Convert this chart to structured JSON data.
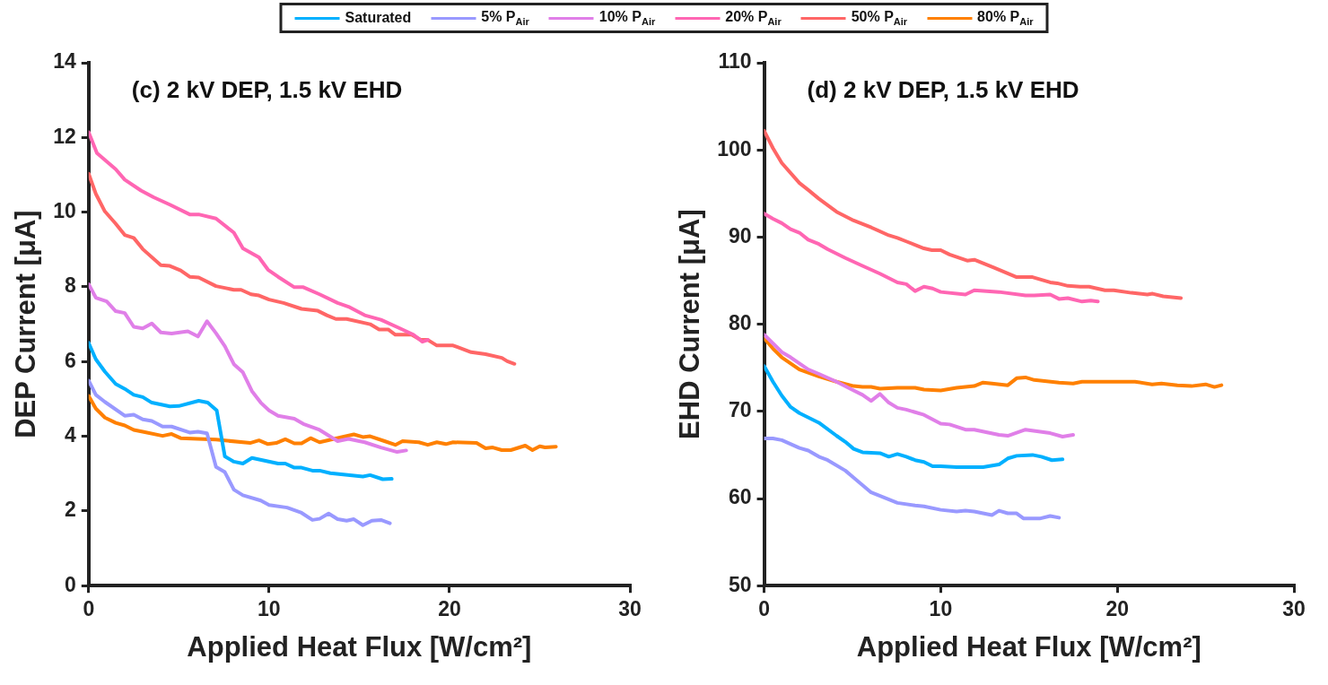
{
  "chart_data": [
    {
      "type": "line",
      "title": "(c) 2 kV DEP, 1.5 kV EHD",
      "xlabel": "Applied Heat Flux [W/cm²]",
      "ylabel": "DEP Current [μA]",
      "xlim": [
        0,
        30
      ],
      "xticks": [
        0,
        10,
        20,
        30
      ],
      "ylim": [
        0,
        14
      ],
      "yticks": [
        0,
        2,
        4,
        6,
        8,
        10,
        12,
        14
      ],
      "legend": "top",
      "marker": "none",
      "line_style": "solid",
      "series": [
        {
          "name": "Saturated",
          "color": "#00b0ff",
          "x": [
            0,
            0.4,
            0.9,
            1.5,
            2.0,
            2.5,
            3.0,
            3.5,
            4.5,
            5.0,
            6.1,
            6.6,
            7.1,
            7.55,
            8.05,
            8.55,
            9.05,
            10.5,
            10.9,
            11.4,
            11.8,
            12.4,
            12.8,
            13.4,
            15.2,
            15.6,
            16.3,
            16.8
          ],
          "values": [
            6.5,
            6.06,
            5.73,
            5.4,
            5.27,
            5.11,
            5.05,
            4.9,
            4.8,
            4.81,
            4.95,
            4.9,
            4.69,
            3.46,
            3.32,
            3.27,
            3.42,
            3.27,
            3.27,
            3.16,
            3.16,
            3.08,
            3.08,
            3.01,
            2.92,
            2.96,
            2.85,
            2.86
          ]
        },
        {
          "name": "5% P$_{Air}$",
          "color": "#9999ff",
          "x": [
            0,
            0.4,
            0.9,
            2.0,
            2.5,
            3.0,
            3.5,
            4.1,
            4.6,
            5.6,
            6.06,
            6.56,
            7.06,
            7.55,
            8.05,
            8.55,
            9.54,
            10.0,
            11.0,
            11.8,
            12.4,
            12.8,
            13.3,
            13.8,
            14.3,
            14.7,
            15.2,
            15.7,
            16.2,
            16.7
          ],
          "values": [
            5.49,
            5.11,
            4.92,
            4.55,
            4.58,
            4.45,
            4.41,
            4.26,
            4.26,
            4.1,
            4.12,
            4.08,
            3.18,
            3.04,
            2.57,
            2.42,
            2.28,
            2.16,
            2.09,
            1.95,
            1.76,
            1.79,
            1.93,
            1.78,
            1.74,
            1.78,
            1.62,
            1.74,
            1.76,
            1.67
          ]
        },
        {
          "name": "10% P$_{Air}$",
          "color": "#e07fe8",
          "x": [
            0,
            0.4,
            1.0,
            1.5,
            2.0,
            2.5,
            3.0,
            3.5,
            4.0,
            4.6,
            5.5,
            6.06,
            6.56,
            7.06,
            7.55,
            8.05,
            8.55,
            9.05,
            9.54,
            10.0,
            10.5,
            11.4,
            11.9,
            12.8,
            13.8,
            14.4,
            15.3,
            16.2,
            17.1,
            17.6
          ],
          "values": [
            8.07,
            7.71,
            7.61,
            7.35,
            7.3,
            6.93,
            6.89,
            7.02,
            6.78,
            6.75,
            6.81,
            6.67,
            7.08,
            6.76,
            6.41,
            5.93,
            5.71,
            5.21,
            4.9,
            4.69,
            4.55,
            4.47,
            4.33,
            4.17,
            3.87,
            3.93,
            3.84,
            3.7,
            3.58,
            3.62
          ]
        },
        {
          "name": "20% P$_{Air}$",
          "color": "#ff66b3",
          "x": [
            0,
            0.46,
            1.5,
            2.0,
            2.9,
            3.6,
            4.5,
            5.6,
            6.1,
            7.06,
            8.05,
            8.55,
            9.44,
            9.94,
            10.5,
            11.4,
            11.9,
            12.8,
            13.8,
            14.4,
            15.3,
            16.2,
            17.2,
            18.0,
            18.5,
            18.8
          ],
          "values": [
            12.14,
            11.58,
            11.15,
            10.87,
            10.58,
            10.4,
            10.2,
            9.94,
            9.94,
            9.83,
            9.45,
            9.03,
            8.79,
            8.46,
            8.27,
            7.99,
            7.99,
            7.8,
            7.57,
            7.47,
            7.24,
            7.12,
            6.9,
            6.72,
            6.53,
            6.58
          ]
        },
        {
          "name": "50% P$_{Air}$",
          "color": "#ff6666",
          "x": [
            0,
            0.4,
            0.9,
            1.5,
            2.0,
            2.5,
            3.0,
            4.0,
            4.5,
            5.1,
            5.6,
            6.1,
            7.06,
            8.05,
            8.45,
            9.0,
            9.44,
            10.0,
            10.8,
            11.8,
            12.7,
            13.2,
            13.7,
            14.3,
            15.6,
            16.1,
            16.6,
            17.0,
            17.9,
            18.4,
            18.8,
            19.3,
            20.2,
            21.2,
            22.0,
            22.9,
            23.2,
            23.6
          ],
          "values": [
            11.03,
            10.49,
            10.02,
            9.69,
            9.39,
            9.31,
            9.01,
            8.58,
            8.56,
            8.44,
            8.27,
            8.25,
            8.02,
            7.92,
            7.92,
            7.8,
            7.77,
            7.66,
            7.57,
            7.41,
            7.36,
            7.24,
            7.14,
            7.14,
            7.0,
            6.86,
            6.86,
            6.72,
            6.72,
            6.58,
            6.58,
            6.43,
            6.43,
            6.25,
            6.2,
            6.1,
            6.01,
            5.94
          ]
        },
        {
          "name": "80% P$_{Air}$",
          "color": "#ff8000",
          "x": [
            0,
            0.4,
            0.9,
            1.5,
            2.0,
            2.5,
            3.0,
            4.1,
            4.6,
            5.1,
            6.06,
            7.06,
            8.95,
            9.44,
            9.94,
            10.4,
            10.9,
            11.4,
            11.8,
            12.3,
            12.8,
            13.6,
            14.7,
            15.2,
            15.6,
            16.4,
            17.0,
            17.4,
            18.3,
            18.8,
            19.3,
            19.8,
            20.2,
            21.5,
            22.0,
            22.4,
            22.9,
            23.4,
            24.2,
            24.6,
            25.0,
            25.3,
            25.9
          ],
          "values": [
            5.08,
            4.74,
            4.5,
            4.36,
            4.29,
            4.17,
            4.12,
            4.01,
            4.06,
            3.95,
            3.93,
            3.91,
            3.82,
            3.89,
            3.79,
            3.82,
            3.92,
            3.81,
            3.81,
            3.95,
            3.84,
            3.93,
            4.05,
            3.98,
            4.0,
            3.87,
            3.77,
            3.87,
            3.84,
            3.77,
            3.84,
            3.79,
            3.84,
            3.82,
            3.68,
            3.7,
            3.63,
            3.63,
            3.75,
            3.63,
            3.73,
            3.7,
            3.72
          ]
        }
      ]
    },
    {
      "type": "line",
      "title": "(d) 2 kV DEP, 1.5 kV EHD",
      "xlabel": "Applied Heat Flux [W/cm²]",
      "ylabel": "EHD Current [μA]",
      "xlim": [
        0,
        30
      ],
      "xticks": [
        0,
        10,
        20,
        30
      ],
      "ylim": [
        50,
        110
      ],
      "yticks": [
        50,
        60,
        70,
        80,
        90,
        100,
        110
      ],
      "marker": "none",
      "line_style": "solid",
      "series": [
        {
          "color": "#00b0ff",
          "x": [
            0,
            0.5,
            1.0,
            1.5,
            2.0,
            3.1,
            4.1,
            4.6,
            5.07,
            5.57,
            6.56,
            7.06,
            7.55,
            8.05,
            8.55,
            9.05,
            9.54,
            10.0,
            10.9,
            11.5,
            12.4,
            13.3,
            13.8,
            14.3,
            15.2,
            15.7,
            16.3,
            16.9
          ],
          "values": [
            75.2,
            73.4,
            71.8,
            70.5,
            69.8,
            68.7,
            67.2,
            66.5,
            65.7,
            65.3,
            65.2,
            64.8,
            65.1,
            64.8,
            64.4,
            64.2,
            63.7,
            63.7,
            63.6,
            63.6,
            63.6,
            63.9,
            64.6,
            64.9,
            65.0,
            64.8,
            64.4,
            64.5
          ]
        },
        {
          "color": "#9999ff",
          "x": [
            0,
            0.5,
            1.0,
            2.0,
            2.5,
            3.1,
            3.6,
            4.6,
            5.07,
            6.06,
            7.55,
            8.55,
            9.05,
            10.0,
            10.9,
            11.4,
            11.9,
            12.9,
            13.3,
            13.8,
            14.3,
            14.7,
            15.6,
            16.2,
            16.7
          ],
          "values": [
            66.9,
            66.9,
            66.7,
            65.8,
            65.5,
            64.8,
            64.4,
            63.2,
            62.4,
            60.7,
            59.5,
            59.2,
            59.1,
            58.7,
            58.5,
            58.6,
            58.5,
            58.1,
            58.6,
            58.3,
            58.3,
            57.7,
            57.7,
            58.0,
            57.8
          ]
        },
        {
          "color": "#e07fe8",
          "x": [
            0,
            0.5,
            1.0,
            1.5,
            2.0,
            2.5,
            3.1,
            4.1,
            5.07,
            5.57,
            6.06,
            6.56,
            7.06,
            7.55,
            8.05,
            8.55,
            9.05,
            10.0,
            10.5,
            11.4,
            11.9,
            13.3,
            13.8,
            14.8,
            16.2,
            16.9,
            17.5
          ],
          "values": [
            78.8,
            77.8,
            76.8,
            76.2,
            75.5,
            74.8,
            74.3,
            73.4,
            72.4,
            71.9,
            71.2,
            72.0,
            71.0,
            70.4,
            70.2,
            69.9,
            69.6,
            68.6,
            68.5,
            67.9,
            67.9,
            67.3,
            67.2,
            67.9,
            67.5,
            67.1,
            67.3
          ]
        },
        {
          "color": "#ff66b3",
          "x": [
            0,
            0.5,
            1.0,
            1.5,
            2.0,
            2.5,
            3.1,
            3.6,
            4.6,
            5.57,
            6.56,
            7.55,
            8.05,
            8.55,
            9.05,
            9.54,
            10.0,
            11.4,
            11.9,
            13.3,
            14.8,
            15.3,
            16.2,
            16.7,
            17.2,
            18.0,
            18.5,
            18.9
          ],
          "values": [
            92.7,
            92.1,
            91.6,
            90.9,
            90.5,
            89.7,
            89.2,
            88.6,
            87.6,
            86.7,
            85.8,
            84.8,
            84.6,
            83.8,
            84.3,
            84.1,
            83.7,
            83.4,
            83.9,
            83.7,
            83.3,
            83.3,
            83.4,
            82.9,
            83.0,
            82.6,
            82.7,
            82.6
          ]
        },
        {
          "color": "#ff6666",
          "x": [
            0,
            0.5,
            1.0,
            2.0,
            2.5,
            3.1,
            4.1,
            5.07,
            6.07,
            7.06,
            7.55,
            8.05,
            9.05,
            9.5,
            10.0,
            10.5,
            11.5,
            11.9,
            13.0,
            14.3,
            15.2,
            16.2,
            16.6,
            17.2,
            17.9,
            18.4,
            19.3,
            19.8,
            20.8,
            21.7,
            22.0,
            22.6,
            23.6
          ],
          "values": [
            102.2,
            100.2,
            98.5,
            96.2,
            95.4,
            94.4,
            92.9,
            91.9,
            91.1,
            90.2,
            89.9,
            89.5,
            88.7,
            88.5,
            88.5,
            88.0,
            87.3,
            87.4,
            86.5,
            85.4,
            85.4,
            84.8,
            84.7,
            84.4,
            84.3,
            84.3,
            83.9,
            83.9,
            83.6,
            83.4,
            83.5,
            83.2,
            83.0
          ]
        },
        {
          "color": "#ff8000",
          "x": [
            0,
            0.5,
            1.0,
            2.0,
            3.1,
            4.1,
            5.07,
            5.57,
            6.06,
            6.56,
            7.55,
            8.55,
            9.05,
            10.0,
            10.9,
            11.9,
            12.4,
            12.9,
            13.8,
            14.3,
            14.8,
            15.3,
            16.7,
            17.5,
            18.0,
            21.0,
            21.97,
            22.5,
            23.4,
            24.2,
            25.0,
            25.5,
            25.9
          ],
          "values": [
            78.4,
            77.2,
            76.2,
            74.8,
            74.0,
            73.4,
            72.9,
            72.8,
            72.8,
            72.6,
            72.7,
            72.7,
            72.5,
            72.4,
            72.7,
            72.9,
            73.3,
            73.2,
            73.0,
            73.8,
            73.9,
            73.6,
            73.3,
            73.2,
            73.4,
            73.4,
            73.1,
            73.2,
            73.0,
            72.9,
            73.1,
            72.8,
            73.0
          ]
        }
      ]
    }
  ]
}
